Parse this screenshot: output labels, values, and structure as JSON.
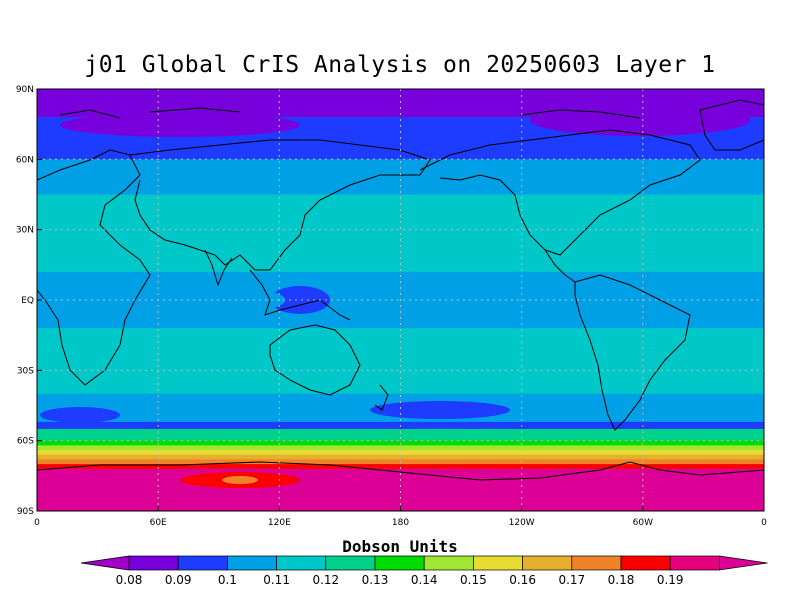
{
  "title": "j01 Global CrIS Analysis on 20250603 Layer 1",
  "y_ticks": [
    "90N",
    "60N",
    "30N",
    "EQ",
    "30S",
    "60S",
    "90S"
  ],
  "x_ticks": [
    "0",
    "60E",
    "120E",
    "180",
    "120W",
    "60W",
    "0"
  ],
  "colorbar": {
    "title": "Dobson Units",
    "labels": [
      "0.08",
      "0.09",
      "0.1",
      "0.11",
      "0.12",
      "0.13",
      "0.14",
      "0.15",
      "0.16",
      "0.17",
      "0.18",
      "0.19"
    ],
    "colors": [
      "#a000c8",
      "#7800dc",
      "#1e3cff",
      "#00a0e6",
      "#00c8c8",
      "#00d28c",
      "#00dc00",
      "#a0e632",
      "#e6dc32",
      "#e6af2d",
      "#f08228",
      "#fa0000",
      "#e6007d",
      "#dc0096"
    ]
  },
  "chart_data": {
    "type": "heatmap",
    "title": "j01 Global CrIS Analysis on 20250603 Layer 1",
    "units": "Dobson Units",
    "xlim": [
      0,
      360
    ],
    "ylim": [
      -90,
      90
    ],
    "bands": [
      {
        "lat_top": 90,
        "lat_bottom": 78,
        "value": 0.085
      },
      {
        "lat_top": 78,
        "lat_bottom": 60,
        "value": 0.09
      },
      {
        "lat_top": 60,
        "lat_bottom": 45,
        "value": 0.1
      },
      {
        "lat_top": 45,
        "lat_bottom": 12,
        "value": 0.11
      },
      {
        "lat_top": 12,
        "lat_bottom": -12,
        "value": 0.1
      },
      {
        "lat_top": -12,
        "lat_bottom": -40,
        "value": 0.11
      },
      {
        "lat_top": -40,
        "lat_bottom": -52,
        "value": 0.1
      },
      {
        "lat_top": -52,
        "lat_bottom": -55,
        "value": 0.09
      },
      {
        "lat_top": -55,
        "lat_bottom": -60,
        "value": 0.12
      },
      {
        "lat_top": -60,
        "lat_bottom": -62,
        "value": 0.13
      },
      {
        "lat_top": -62,
        "lat_bottom": -64,
        "value": 0.14
      },
      {
        "lat_top": -64,
        "lat_bottom": -66,
        "value": 0.15
      },
      {
        "lat_top": -66,
        "lat_bottom": -68,
        "value": 0.16
      },
      {
        "lat_top": -68,
        "lat_bottom": -70,
        "value": 0.17
      },
      {
        "lat_top": -70,
        "lat_bottom": -72,
        "value": 0.18
      },
      {
        "lat_top": -72,
        "lat_bottom": -78,
        "value": 0.19
      },
      {
        "lat_top": -78,
        "lat_bottom": -90,
        "value": 0.195
      }
    ]
  }
}
